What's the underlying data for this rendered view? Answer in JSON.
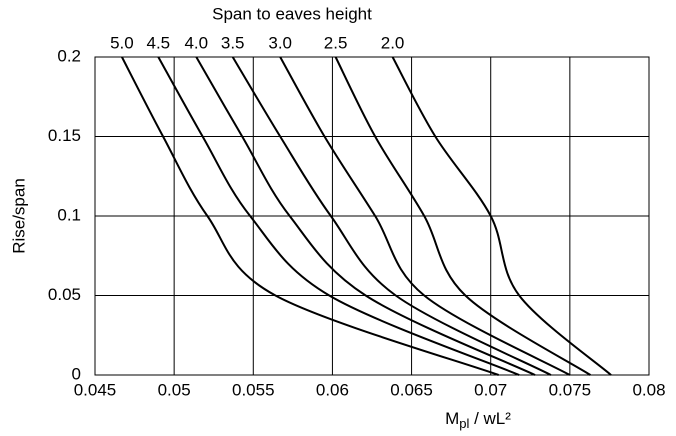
{
  "chart_data": {
    "type": "line",
    "title": "Span to eaves height",
    "x_label": {
      "main": "M",
      "sub": "pl",
      "rest": " / wL²"
    },
    "y_label": "Rise/span",
    "xlim": [
      0.045,
      0.08
    ],
    "ylim": [
      0,
      0.2
    ],
    "xticks": [
      0.045,
      0.05,
      0.055,
      0.06,
      0.065,
      0.07,
      0.075,
      0.08
    ],
    "yticks": [
      0,
      0.05,
      0.1,
      0.15,
      0.2
    ],
    "grid": true,
    "series": [
      {
        "name": "5.0",
        "color": "#000000",
        "x": [
          0.0467,
          0.0493,
          0.0521,
          0.0564,
          0.0705
        ],
        "values": [
          0.2,
          0.15,
          0.1,
          0.05,
          0
        ]
      },
      {
        "name": "4.5",
        "color": "#000000",
        "x": [
          0.049,
          0.0518,
          0.0548,
          0.0598,
          0.0718
        ],
        "values": [
          0.2,
          0.15,
          0.1,
          0.05,
          0
        ]
      },
      {
        "name": "4.0",
        "color": "#000000",
        "x": [
          0.0514,
          0.0543,
          0.0573,
          0.0621,
          0.0728
        ],
        "values": [
          0.2,
          0.15,
          0.1,
          0.05,
          0
        ]
      },
      {
        "name": "3.5",
        "color": "#000000",
        "x": [
          0.0537,
          0.0567,
          0.0599,
          0.064,
          0.0738
        ],
        "values": [
          0.2,
          0.15,
          0.1,
          0.05,
          0
        ]
      },
      {
        "name": "3.0",
        "color": "#000000",
        "x": [
          0.0567,
          0.0595,
          0.0627,
          0.0658,
          0.075
        ],
        "values": [
          0.2,
          0.15,
          0.1,
          0.05,
          0
        ]
      },
      {
        "name": "2.5",
        "color": "#000000",
        "x": [
          0.0602,
          0.0627,
          0.0658,
          0.0684,
          0.0763
        ],
        "values": [
          0.2,
          0.15,
          0.1,
          0.05,
          0
        ]
      },
      {
        "name": "2.0",
        "color": "#000000",
        "x": [
          0.0638,
          0.0665,
          0.07,
          0.0718,
          0.0776
        ],
        "values": [
          0.2,
          0.15,
          0.1,
          0.05,
          0
        ]
      }
    ]
  }
}
